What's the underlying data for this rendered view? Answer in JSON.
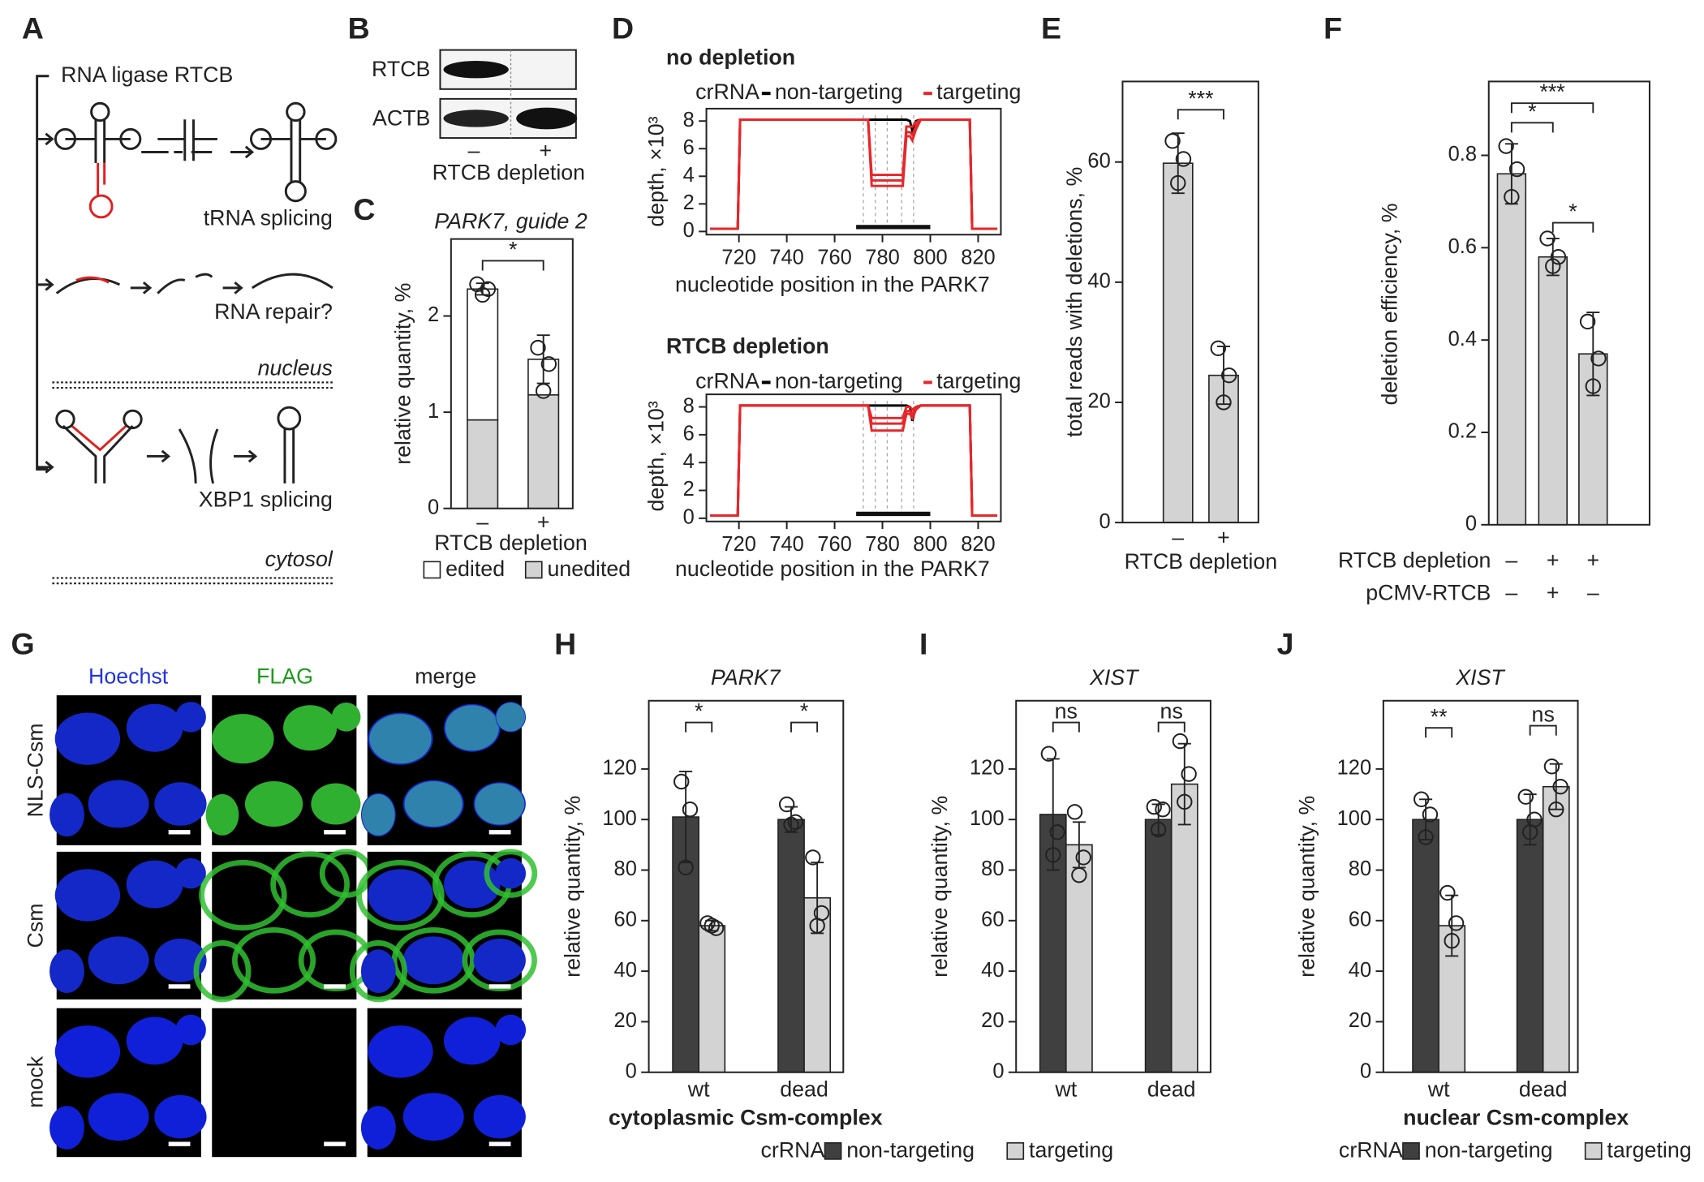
{
  "panels": {
    "labels": [
      "A",
      "B",
      "C",
      "D",
      "E",
      "F",
      "G",
      "H",
      "I",
      "J"
    ]
  },
  "diagram": {
    "title": "RNA ligase RTCB",
    "labels": [
      "tRNA splicing",
      "RNA repair?",
      "nucleus",
      "XBP1 splicing",
      "cytosol"
    ]
  },
  "blot": {
    "rows": [
      "RTCB",
      "ACTB"
    ],
    "lanes": [
      "–",
      "+"
    ],
    "xlabel": "RTCB depletion"
  },
  "images": {
    "columns": [
      "Hoechst",
      "FLAG",
      "merge"
    ],
    "rows": [
      "NLS-Csm",
      "Csm",
      "mock"
    ]
  },
  "chart_data": [
    {
      "type": "bar",
      "stacked": true,
      "title": "PARK7, guide 2",
      "ylabel": "relative quantity, %",
      "xlabel": "RTCB depletion",
      "categories": [
        "–",
        "+"
      ],
      "ylim": [
        0,
        2.8
      ],
      "yticks": [
        0,
        1,
        2
      ],
      "series": [
        {
          "name": "unedited",
          "color": "#d3d3d3",
          "values": [
            0.92,
            1.18
          ]
        },
        {
          "name": "edited",
          "color": "#ffffff",
          "values": [
            1.36,
            0.37
          ],
          "errors": [
            0.06,
            0.25
          ],
          "points": [
            [
              2.33,
              2.28,
              2.22
            ],
            [
              1.67,
              1.5,
              1.22
            ]
          ]
        }
      ],
      "significance": [
        "*"
      ],
      "legend": true
    },
    {
      "type": "line",
      "title": "no depletion",
      "legend_title": "crRNA",
      "ylabel": "depth, ×10³",
      "xlabel": "nucleotide position in the PARK7",
      "xlim": [
        706.4,
        829.5
      ],
      "xticks": [
        720,
        740,
        760,
        780,
        800,
        820
      ],
      "ylim": [
        -0.23,
        8.9
      ],
      "yticks": [
        0,
        2,
        4,
        6,
        8
      ],
      "x": [
        708,
        719.5,
        720.5,
        774,
        775.5,
        788.5,
        790,
        791.5,
        792.5,
        794,
        796,
        816.5,
        817.5,
        828
      ],
      "series": [
        {
          "name": "non-targeting",
          "color": "#000000",
          "values": [
            0.2,
            0.2,
            8.1,
            8.1,
            8.1,
            8.1,
            8.1,
            8.0,
            7.3,
            8.0,
            8.1,
            8.1,
            0.2,
            0.2
          ]
        },
        {
          "name": "targeting",
          "color": "#e8262a",
          "values": [
            0.2,
            0.2,
            8.1,
            8.1,
            4.1,
            4.1,
            7.6,
            7.6,
            7.6,
            7.9,
            8.1,
            8.1,
            0.2,
            0.2
          ]
        },
        {
          "name": "targeting",
          "color": "#e8262a",
          "values": [
            0.2,
            0.2,
            8.1,
            8.1,
            3.7,
            3.7,
            7.2,
            7.2,
            7.0,
            7.6,
            8.1,
            8.1,
            0.2,
            0.2
          ]
        },
        {
          "name": "targeting",
          "color": "#e8262a",
          "values": [
            0.2,
            0.2,
            8.1,
            8.1,
            3.3,
            3.3,
            6.9,
            6.9,
            6.6,
            7.4,
            8.1,
            8.1,
            0.2,
            0.2
          ]
        }
      ],
      "guide_region": [
        769,
        800
      ],
      "guide_lines": [
        772,
        777,
        782,
        788,
        793
      ]
    },
    {
      "type": "line",
      "title": "RTCB depletion",
      "legend_title": "crRNA",
      "ylabel": "depth, ×10³",
      "xlabel": "nucleotide position in the PARK7",
      "xlim": [
        706.4,
        829.5
      ],
      "xticks": [
        720,
        740,
        760,
        780,
        800,
        820
      ],
      "ylim": [
        -0.23,
        8.9
      ],
      "yticks": [
        0,
        2,
        4,
        6,
        8
      ],
      "x": [
        708,
        719.5,
        720.5,
        774,
        775.5,
        788.5,
        790,
        791.5,
        792.5,
        794,
        796,
        816.5,
        817.5,
        828
      ],
      "series": [
        {
          "name": "non-targeting",
          "color": "#000000",
          "values": [
            0.2,
            0.2,
            8.1,
            8.1,
            8.1,
            8.1,
            8.1,
            8.0,
            7.0,
            8.0,
            8.1,
            8.1,
            0.2,
            0.2
          ]
        },
        {
          "name": "targeting",
          "color": "#e8262a",
          "values": [
            0.2,
            0.2,
            8.1,
            8.1,
            7.2,
            7.2,
            8.0,
            8.0,
            7.8,
            8.0,
            8.1,
            8.1,
            0.2,
            0.2
          ]
        },
        {
          "name": "targeting",
          "color": "#e8262a",
          "values": [
            0.2,
            0.2,
            8.1,
            8.1,
            6.8,
            6.8,
            7.7,
            7.7,
            7.5,
            7.9,
            8.1,
            8.1,
            0.2,
            0.2
          ]
        },
        {
          "name": "targeting",
          "color": "#e8262a",
          "values": [
            0.2,
            0.2,
            8.1,
            8.1,
            6.3,
            6.3,
            7.5,
            7.5,
            7.2,
            7.8,
            8.1,
            8.1,
            0.2,
            0.2
          ]
        }
      ],
      "guide_region": [
        769,
        800
      ],
      "guide_lines": [
        772,
        777,
        782,
        788,
        793
      ]
    },
    {
      "type": "bar",
      "ylabel": "total reads with deletions, %",
      "xlabel": "RTCB depletion",
      "categories": [
        "–",
        "+"
      ],
      "ylim": [
        0,
        73.4
      ],
      "yticks": [
        0,
        20,
        40,
        60
      ],
      "series": [
        {
          "color": "#d3d3d3",
          "values": [
            59.8,
            24.5
          ],
          "errors": [
            5,
            4.8
          ],
          "points": [
            [
              63.5,
              60.5,
              56.5
            ],
            [
              29,
              24.5,
              20
            ]
          ]
        }
      ],
      "significance": [
        "***"
      ]
    },
    {
      "type": "bar",
      "ylabel": "deletion efficiency, %",
      "xlabel": "RTCB depletion",
      "xlabel2": "pCMV-RTCB",
      "categories": [
        "–",
        "+",
        "+"
      ],
      "categories_row2": [
        "–",
        "+",
        "–"
      ],
      "ylim": [
        0,
        0.96
      ],
      "yticks": [
        0,
        0.2,
        0.4,
        0.6,
        0.8
      ],
      "series": [
        {
          "color": "#d3d3d3",
          "values": [
            0.76,
            0.58,
            0.37
          ],
          "errors": [
            0.065,
            0.04,
            0.09
          ],
          "points": [
            [
              0.82,
              0.77,
              0.71
            ],
            [
              0.62,
              0.58,
              0.56
            ],
            [
              0.44,
              0.36,
              0.3
            ]
          ]
        }
      ],
      "significance": [
        "*",
        "***",
        "*"
      ]
    },
    {
      "type": "bar",
      "title": "PARK7",
      "ylabel": "relative quantity, %",
      "xlabel": "cytoplasmic Csm-complex",
      "categories": [
        "wt",
        "dead"
      ],
      "ylim": [
        0,
        147
      ],
      "yticks": [
        0,
        20,
        40,
        60,
        80,
        100,
        120
      ],
      "series": [
        {
          "name": "non-targeting",
          "color": "#404040",
          "values": [
            101,
            100
          ],
          "errors": [
            18,
            5
          ],
          "points": [
            [
              115,
              104,
              81
            ],
            [
              106,
              99,
              98
            ]
          ]
        },
        {
          "name": "targeting",
          "color": "#d3d3d3",
          "values": [
            58,
            69
          ],
          "errors": [
            2,
            14
          ],
          "points": [
            [
              59,
              57,
              58
            ],
            [
              85,
              63,
              58
            ]
          ]
        }
      ],
      "significance": [
        "*",
        "*"
      ]
    },
    {
      "type": "bar",
      "title": "XIST",
      "ylabel": "relative quantity, %",
      "categories": [
        "wt",
        "dead"
      ],
      "ylim": [
        0,
        147
      ],
      "yticks": [
        0,
        20,
        40,
        60,
        80,
        100,
        120
      ],
      "series": [
        {
          "name": "non-targeting",
          "color": "#404040",
          "values": [
            102,
            100
          ],
          "errors": [
            22,
            6
          ],
          "points": [
            [
              126,
              95,
              86
            ],
            [
              105,
              104,
              96
            ]
          ]
        },
        {
          "name": "targeting",
          "color": "#d3d3d3",
          "values": [
            90,
            114
          ],
          "errors": [
            9,
            16
          ],
          "points": [
            [
              103,
              85,
              78
            ],
            [
              131,
              118,
              107
            ]
          ]
        }
      ],
      "significance": [
        "ns",
        "ns"
      ],
      "legend": true,
      "legend_title": "crRNA"
    },
    {
      "type": "bar",
      "title": "XIST",
      "ylabel": "relative quantity, %",
      "xlabel": "nuclear Csm-complex",
      "categories": [
        "wt",
        "dead"
      ],
      "ylim": [
        0,
        147
      ],
      "yticks": [
        0,
        20,
        40,
        60,
        80,
        100,
        120
      ],
      "series": [
        {
          "name": "non-targeting",
          "color": "#404040",
          "values": [
            100,
            100
          ],
          "errors": [
            8,
            10
          ],
          "points": [
            [
              108,
              102,
              93
            ],
            [
              109,
              100,
              95
            ]
          ]
        },
        {
          "name": "targeting",
          "color": "#d3d3d3",
          "values": [
            58,
            113
          ],
          "errors": [
            12,
            9
          ],
          "points": [
            [
              71,
              59,
              52
            ],
            [
              121,
              113,
              104
            ]
          ]
        }
      ],
      "significance": [
        "**",
        "ns"
      ],
      "legend": true,
      "legend_title": "crRNA"
    }
  ]
}
